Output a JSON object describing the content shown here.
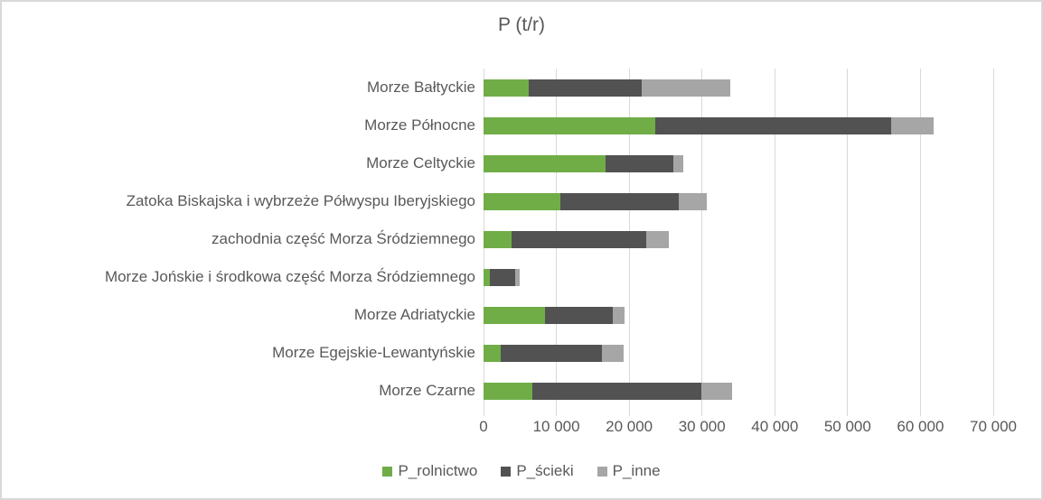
{
  "chart_data": {
    "type": "bar",
    "orientation": "horizontal",
    "stacked": true,
    "title": "P (t/r)",
    "categories": [
      "Morze Bałtyckie",
      "Morze Północne",
      "Morze Celtyckie",
      "Zatoka Biskajska i wybrzeże Półwyspu Iberyjskiego",
      "zachodnia część Morza Śródziemnego",
      "Morze Jońskie i środkowa część Morza Śródziemnego",
      "Morze Adriatyckie",
      "Morze Egejskie-Lewantyńskie",
      "Morze Czarne"
    ],
    "series": [
      {
        "key": "rolnictwo",
        "name": "P_rolnictwo",
        "color": "#70AD47",
        "values": [
          6200,
          23600,
          16700,
          10600,
          3900,
          900,
          8500,
          2300,
          6700
        ]
      },
      {
        "key": "scieki",
        "name": "P_ścieki",
        "color": "#525252",
        "values": [
          15500,
          32400,
          9400,
          16200,
          18500,
          3400,
          9200,
          14000,
          23200
        ]
      },
      {
        "key": "inne",
        "name": "P_inne",
        "color": "#A6A6A6",
        "values": [
          12200,
          5800,
          1300,
          3800,
          3100,
          700,
          1700,
          2900,
          4200
        ]
      }
    ],
    "x_ticks": [
      0,
      10000,
      20000,
      30000,
      40000,
      50000,
      60000,
      70000
    ],
    "x_tick_labels": [
      "0",
      "10 000",
      "20 000",
      "30 000",
      "40 000",
      "50 000",
      "60 000",
      "70 000"
    ],
    "xlim": [
      0,
      70000
    ],
    "grid": true,
    "legend_position": "bottom",
    "colors": {
      "text": "#595959",
      "gridline": "#D9D9D9",
      "background": "#FFFFFF"
    }
  }
}
